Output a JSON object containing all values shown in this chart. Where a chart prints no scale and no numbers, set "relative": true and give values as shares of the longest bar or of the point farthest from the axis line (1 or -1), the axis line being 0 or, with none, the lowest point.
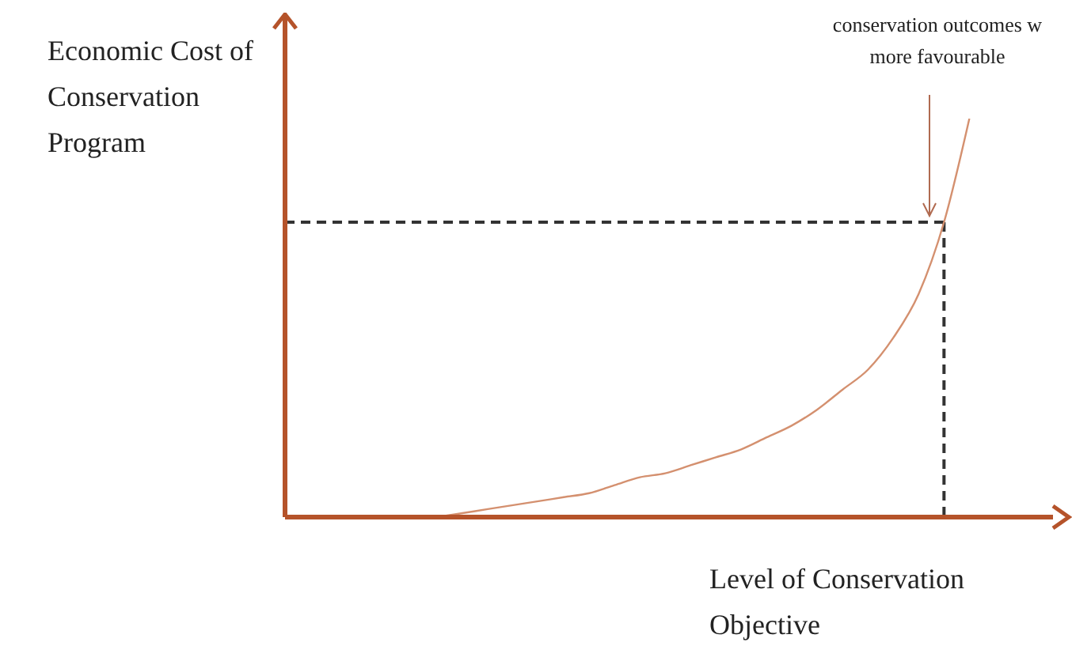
{
  "chart_data": {
    "type": "line",
    "relative": true,
    "xlabel": "Level of Conservation Objective",
    "ylabel": "Economic Cost of Conservation Program",
    "annotations": [
      "conservation outcomes w more favourable"
    ],
    "categories": [
      null,
      null,
      null,
      null,
      null,
      null,
      null,
      null,
      null,
      null,
      null,
      null,
      null,
      null,
      null,
      null,
      null,
      null,
      null,
      null,
      null,
      null,
      null,
      null,
      null,
      null,
      null,
      null,
      null,
      null
    ],
    "series": [
      {
        "color": "#d4906f",
        "values": [
          null,
          null,
          null,
          null,
          null,
          null,
          0,
          0.01,
          0.02,
          0.03,
          0.04,
          0.05,
          0.06,
          0.08,
          0.1,
          0.11,
          0.13,
          0.15,
          0.17,
          0.2,
          0.23,
          0.27,
          0.32,
          0.37,
          0.45,
          0.56,
          0.74,
          1,
          null,
          null
        ]
      }
    ],
    "ref_lines": [
      {
        "axis": "y",
        "value": 0.74,
        "color": "#333333",
        "line_style": "dashed"
      }
    ],
    "marker": "none",
    "line_style": "solid"
  }
}
